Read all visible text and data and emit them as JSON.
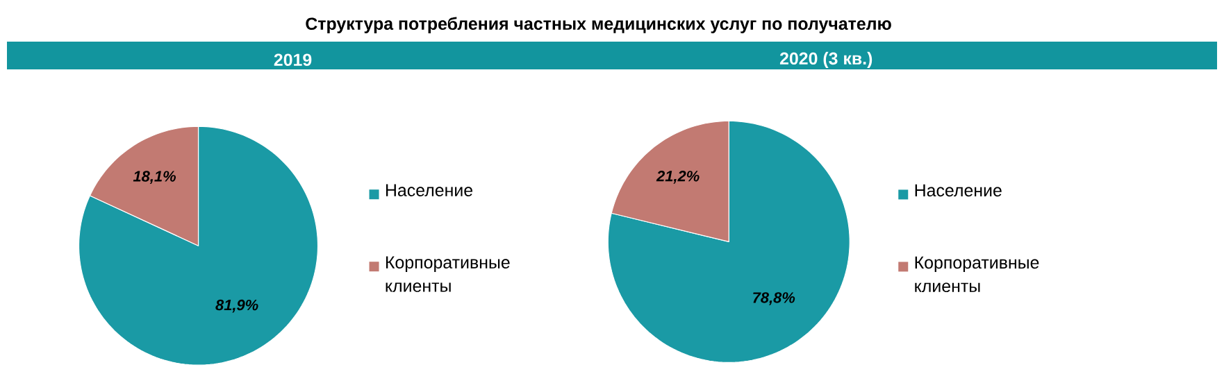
{
  "chart_data": [
    {
      "type": "pie",
      "title": "Структура потребления частных медицинских услуг по получателю",
      "subtitle": "2019",
      "categories": [
        "Население",
        "Корпоративные клиенты"
      ],
      "values": [
        81.9,
        18.1
      ],
      "value_labels": [
        "81,9%",
        "18,1%"
      ],
      "colors": [
        "#1a9aa5",
        "#c27a72"
      ],
      "legend": "right"
    },
    {
      "type": "pie",
      "subtitle": "2020 (3 кв.)",
      "categories": [
        "Население",
        "Корпоративные клиенты"
      ],
      "values": [
        78.8,
        21.2
      ],
      "value_labels": [
        "78,8%",
        "21,2%"
      ],
      "colors": [
        "#1a9aa5",
        "#c27a72"
      ],
      "legend": "right"
    }
  ]
}
